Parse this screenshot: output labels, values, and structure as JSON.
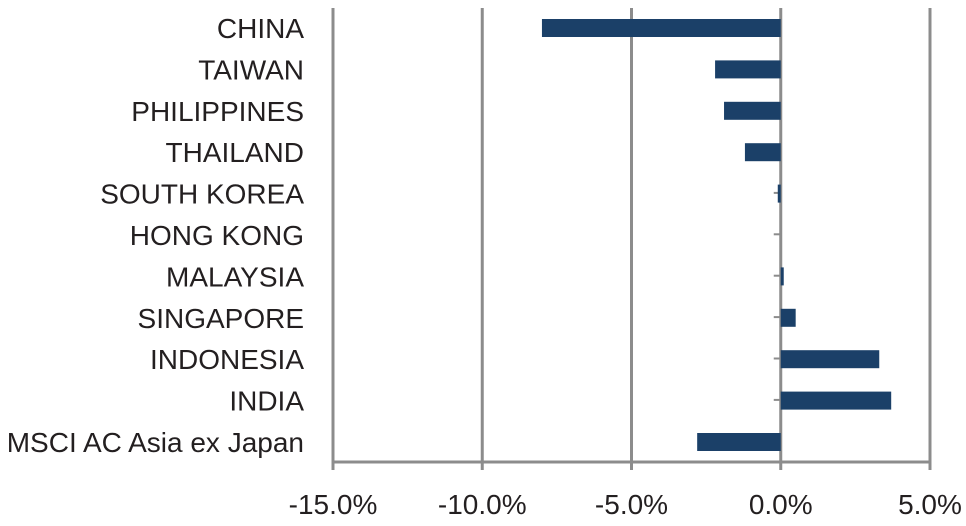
{
  "chart_data": {
    "type": "bar",
    "orientation": "horizontal",
    "categories": [
      "CHINA",
      "TAIWAN",
      "PHILIPPINES",
      "THAILAND",
      "SOUTH KOREA",
      "HONG KONG",
      "MALAYSIA",
      "SINGAPORE",
      "INDONESIA",
      "INDIA",
      "MSCI AC Asia ex Japan"
    ],
    "values": [
      -8.0,
      -2.2,
      -1.9,
      -1.2,
      -0.1,
      0.0,
      0.1,
      0.5,
      3.3,
      3.7,
      -2.8
    ],
    "xlim": [
      -15,
      5
    ],
    "xticks": [
      -15,
      -10,
      -5,
      0,
      5
    ],
    "xtick_labels": [
      "-15.0%",
      "-10.0%",
      "-5.0%",
      "0.0%",
      "5.0%"
    ],
    "grid": true,
    "bar_color": "#1b4068",
    "grid_color": "#8c8c8c",
    "title": "",
    "xlabel": "",
    "ylabel": ""
  }
}
